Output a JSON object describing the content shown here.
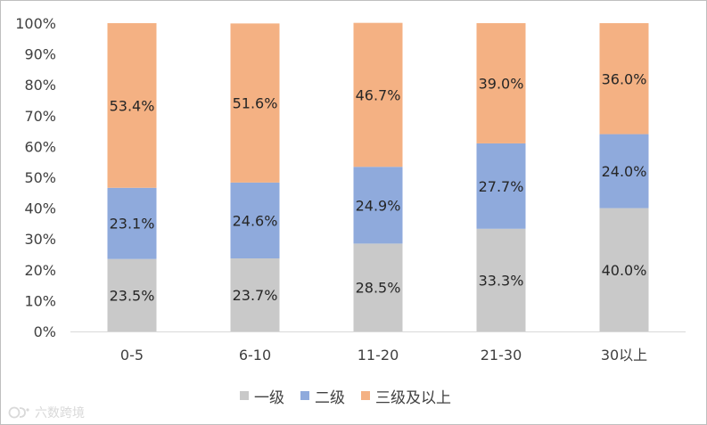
{
  "chart_data": {
    "type": "bar",
    "stacked": true,
    "normalized": true,
    "categories": [
      "0-5",
      "6-10",
      "11-20",
      "21-30",
      "30以上"
    ],
    "ylim": [
      0,
      100
    ],
    "yticks": [
      "0%",
      "10%",
      "20%",
      "30%",
      "40%",
      "50%",
      "60%",
      "70%",
      "80%",
      "90%",
      "100%"
    ],
    "grid": false,
    "legend_position": "bottom",
    "series": [
      {
        "name": "一级",
        "color": "#c9c9c9",
        "values": [
          23.5,
          23.7,
          28.5,
          33.3,
          40.0
        ],
        "labels": [
          "23.5%",
          "23.7%",
          "28.5%",
          "33.3%",
          "40.0%"
        ]
      },
      {
        "name": "二级",
        "color": "#8faadc",
        "values": [
          23.1,
          24.6,
          24.9,
          27.7,
          24.0
        ],
        "labels": [
          "23.1%",
          "24.6%",
          "24.9%",
          "27.7%",
          "24.0%"
        ]
      },
      {
        "name": "三级及以上",
        "color": "#f4b183",
        "values": [
          53.4,
          51.6,
          46.7,
          39.0,
          36.0
        ],
        "labels": [
          "53.4%",
          "51.6%",
          "46.7%",
          "39.0%",
          "36.0%"
        ]
      }
    ]
  },
  "watermark": {
    "text": "六数跨境",
    "icon": "brand-logo-icon"
  }
}
